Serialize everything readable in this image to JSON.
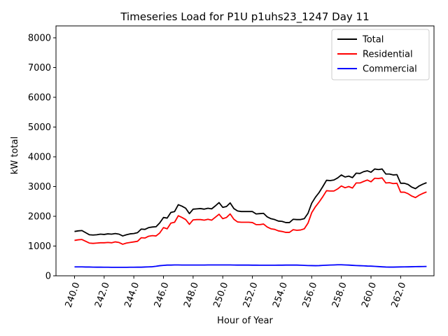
{
  "chart_data": {
    "type": "line",
    "title": "Timeseries Load for P1U p1uhs23_1247  Day 11",
    "xlabel": "Hour of Year",
    "ylabel": "kW total",
    "xlim": [
      238.75,
      264.25
    ],
    "ylim": [
      0,
      8400
    ],
    "x_ticks": [
      240,
      242,
      244,
      246,
      248,
      250,
      252,
      254,
      256,
      258,
      260,
      262
    ],
    "x_tick_labels": [
      "240.0",
      "242.0",
      "244.0",
      "246.0",
      "248.0",
      "250.0",
      "252.0",
      "254.0",
      "256.0",
      "258.0",
      "260.0",
      "262.0"
    ],
    "y_ticks": [
      0,
      1000,
      2000,
      3000,
      4000,
      5000,
      6000,
      7000,
      8000
    ],
    "y_tick_labels": [
      "0",
      "1000",
      "2000",
      "3000",
      "4000",
      "5000",
      "6000",
      "7000",
      "8000"
    ],
    "legend_position": "top-right",
    "grid": false,
    "x": [
      240.0,
      240.25,
      240.5,
      240.75,
      241.0,
      241.25,
      241.5,
      241.75,
      242.0,
      242.25,
      242.5,
      242.75,
      243.0,
      243.25,
      243.5,
      243.75,
      244.0,
      244.25,
      244.5,
      244.75,
      245.0,
      245.25,
      245.5,
      245.75,
      246.0,
      246.25,
      246.5,
      246.75,
      247.0,
      247.25,
      247.5,
      247.75,
      248.0,
      248.25,
      248.5,
      248.75,
      249.0,
      249.25,
      249.5,
      249.75,
      250.0,
      250.25,
      250.5,
      250.75,
      251.0,
      251.25,
      251.5,
      251.75,
      252.0,
      252.25,
      252.5,
      252.75,
      253.0,
      253.25,
      253.5,
      253.75,
      254.0,
      254.25,
      254.5,
      254.75,
      255.0,
      255.25,
      255.5,
      255.75,
      256.0,
      256.25,
      256.5,
      256.75,
      257.0,
      257.25,
      257.5,
      257.75,
      258.0,
      258.25,
      258.5,
      258.75,
      259.0,
      259.25,
      259.5,
      259.75,
      260.0,
      260.25,
      260.5,
      260.75,
      261.0,
      261.25,
      261.5,
      261.75,
      262.0,
      262.25,
      262.5,
      262.75,
      263.0,
      263.25,
      263.5,
      263.75
    ],
    "series": [
      {
        "name": "Total",
        "color": "#000000",
        "values": [
          1490,
          1510,
          1520,
          1450,
          1380,
          1370,
          1380,
          1400,
          1390,
          1410,
          1400,
          1420,
          1400,
          1340,
          1380,
          1410,
          1420,
          1450,
          1570,
          1560,
          1620,
          1640,
          1650,
          1780,
          1960,
          1940,
          2130,
          2160,
          2390,
          2340,
          2270,
          2090,
          2240,
          2250,
          2260,
          2240,
          2270,
          2250,
          2350,
          2460,
          2300,
          2330,
          2450,
          2260,
          2180,
          2160,
          2160,
          2160,
          2160,
          2080,
          2090,
          2100,
          1980,
          1920,
          1890,
          1840,
          1830,
          1790,
          1790,
          1900,
          1890,
          1890,
          1920,
          2100,
          2440,
          2640,
          2800,
          3000,
          3210,
          3200,
          3220,
          3290,
          3390,
          3320,
          3350,
          3300,
          3450,
          3440,
          3500,
          3530,
          3480,
          3590,
          3570,
          3590,
          3420,
          3420,
          3390,
          3400,
          3110,
          3110,
          3070,
          2980,
          2930,
          3020,
          3080,
          3130
        ]
      },
      {
        "name": "Residential",
        "color": "#ff0000",
        "values": [
          1190,
          1210,
          1220,
          1160,
          1100,
          1090,
          1100,
          1110,
          1110,
          1120,
          1110,
          1140,
          1120,
          1060,
          1100,
          1120,
          1140,
          1160,
          1280,
          1270,
          1330,
          1350,
          1340,
          1440,
          1620,
          1580,
          1770,
          1800,
          2020,
          1960,
          1890,
          1730,
          1880,
          1890,
          1890,
          1870,
          1900,
          1870,
          1970,
          2070,
          1920,
          1960,
          2080,
          1900,
          1810,
          1800,
          1800,
          1800,
          1790,
          1720,
          1720,
          1740,
          1640,
          1580,
          1560,
          1510,
          1490,
          1460,
          1460,
          1550,
          1530,
          1540,
          1580,
          1770,
          2120,
          2320,
          2480,
          2660,
          2860,
          2850,
          2850,
          2920,
          3020,
          2960,
          3000,
          2950,
          3120,
          3120,
          3170,
          3220,
          3160,
          3280,
          3270,
          3290,
          3120,
          3130,
          3100,
          3110,
          2810,
          2810,
          2760,
          2680,
          2630,
          2710,
          2770,
          2820
        ]
      },
      {
        "name": "Commercial",
        "color": "#0000ff",
        "values": [
          300,
          300,
          300,
          295,
          295,
          292,
          290,
          290,
          288,
          288,
          285,
          285,
          285,
          285,
          285,
          288,
          288,
          290,
          290,
          295,
          300,
          305,
          320,
          340,
          350,
          360,
          360,
          365,
          365,
          362,
          362,
          362,
          362,
          362,
          362,
          362,
          365,
          365,
          365,
          365,
          365,
          365,
          365,
          362,
          360,
          360,
          360,
          360,
          358,
          358,
          355,
          355,
          355,
          355,
          355,
          358,
          358,
          360,
          360,
          360,
          360,
          355,
          350,
          345,
          342,
          340,
          342,
          350,
          355,
          362,
          365,
          370,
          370,
          365,
          360,
          352,
          345,
          340,
          335,
          328,
          325,
          318,
          310,
          302,
          295,
          293,
          293,
          296,
          298,
          300,
          302,
          305,
          308,
          310,
          312,
          315
        ]
      }
    ]
  }
}
